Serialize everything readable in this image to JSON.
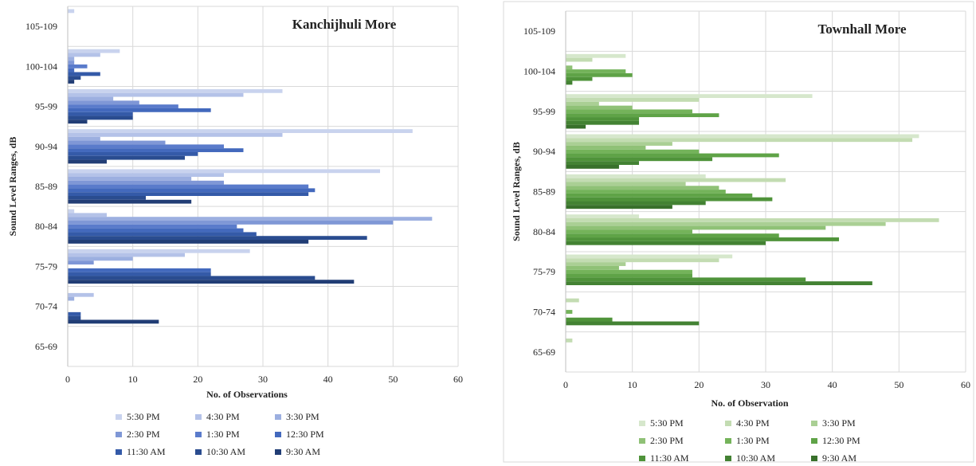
{
  "chart_data": [
    {
      "type": "bar",
      "orientation": "horizontal",
      "title": "Kanchijhuli  More",
      "xlabel": "No. of Observations",
      "ylabel": "Sound Level Ranges, dB",
      "xlim": [
        0,
        60
      ],
      "xticks": [
        "0",
        "10",
        "20",
        "30",
        "40",
        "50",
        "60"
      ],
      "grid": "vertical",
      "legend": "bottom",
      "categories": [
        "105-109",
        "100-104",
        "95-99",
        "90-94",
        "85-89",
        "80-84",
        "75-79",
        "70-74",
        "65-69"
      ],
      "series": [
        {
          "name": "5:30 PM",
          "color": "#c9d3ee",
          "values": [
            1,
            8,
            33,
            53,
            48,
            1,
            28,
            0,
            0
          ]
        },
        {
          "name": "4:30 PM",
          "color": "#b4c2e8",
          "values": [
            0,
            5,
            27,
            33,
            24,
            6,
            18,
            4,
            0
          ]
        },
        {
          "name": "3:30 PM",
          "color": "#9cafe0",
          "values": [
            0,
            1,
            7,
            5,
            19,
            56,
            10,
            1,
            0
          ]
        },
        {
          "name": "2:30 PM",
          "color": "#7f97d6",
          "values": [
            0,
            1,
            11,
            15,
            24,
            50,
            4,
            0,
            0
          ]
        },
        {
          "name": "1:30 PM",
          "color": "#5a7bcb",
          "values": [
            0,
            3,
            17,
            24,
            37,
            26,
            0,
            0,
            0
          ]
        },
        {
          "name": "12:30 PM",
          "color": "#4369bd",
          "values": [
            0,
            1,
            22,
            27,
            38,
            27,
            22,
            0,
            0
          ]
        },
        {
          "name": "11:30 AM",
          "color": "#345aa8",
          "values": [
            0,
            5,
            10,
            20,
            37,
            29,
            22,
            2,
            0
          ]
        },
        {
          "name": "10:30 AM",
          "color": "#2a4c8f",
          "values": [
            0,
            2,
            10,
            18,
            12,
            46,
            38,
            2,
            0
          ]
        },
        {
          "name": "9:30 AM",
          "color": "#213d75",
          "values": [
            0,
            1,
            3,
            6,
            19,
            37,
            44,
            14,
            0
          ]
        }
      ]
    },
    {
      "type": "bar",
      "orientation": "horizontal",
      "title": "Townhall  More",
      "xlabel": "No. of Observation",
      "ylabel": "Sound Level Ranges, dB",
      "xlim": [
        0,
        60
      ],
      "xticks": [
        "0",
        "10",
        "20",
        "30",
        "40",
        "50",
        "60"
      ],
      "grid": "vertical",
      "legend": "bottom",
      "categories": [
        "105-109",
        "100-104",
        "95-99",
        "90-94",
        "85-89",
        "80-84",
        "75-79",
        "70-74",
        "65-69"
      ],
      "series": [
        {
          "name": "5:30 PM",
          "color": "#d6e7cc",
          "values": [
            0,
            9,
            37,
            53,
            21,
            11,
            25,
            0,
            0
          ]
        },
        {
          "name": "4:30 PM",
          "color": "#c3dcb2",
          "values": [
            0,
            4,
            20,
            52,
            33,
            56,
            23,
            2,
            1
          ]
        },
        {
          "name": "3:30 PM",
          "color": "#aacf94",
          "values": [
            0,
            0,
            5,
            16,
            18,
            48,
            9,
            0,
            0
          ]
        },
        {
          "name": "2:30 PM",
          "color": "#8fc176",
          "values": [
            0,
            1,
            10,
            12,
            23,
            39,
            8,
            0,
            0
          ]
        },
        {
          "name": "1:30 PM",
          "color": "#74b35a",
          "values": [
            0,
            9,
            19,
            20,
            24,
            19,
            19,
            1,
            0
          ]
        },
        {
          "name": "12:30 PM",
          "color": "#5fa347",
          "values": [
            0,
            10,
            23,
            32,
            28,
            32,
            19,
            0,
            0
          ]
        },
        {
          "name": "11:30 AM",
          "color": "#4f933a",
          "values": [
            0,
            4,
            11,
            22,
            31,
            41,
            36,
            7,
            0
          ]
        },
        {
          "name": "10:30 AM",
          "color": "#438233",
          "values": [
            0,
            1,
            11,
            11,
            21,
            30,
            46,
            20,
            0
          ]
        },
        {
          "name": "9:30 AM",
          "color": "#38702b",
          "values": [
            0,
            0,
            3,
            8,
            16,
            0,
            0,
            0,
            0
          ]
        }
      ]
    }
  ]
}
